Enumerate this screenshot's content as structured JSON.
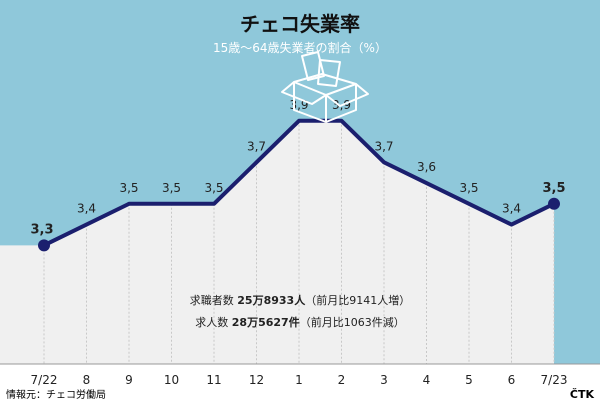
{
  "chart_data": {
    "type": "area",
    "title": "チェコ失業率",
    "subtitle": "15歳〜64歳失業者の割合（%）",
    "categories": [
      "7/22",
      "8",
      "9",
      "10",
      "11",
      "12",
      "1",
      "2",
      "3",
      "4",
      "5",
      "6",
      "7/23"
    ],
    "values": [
      3.3,
      3.4,
      3.5,
      3.5,
      3.5,
      3.7,
      3.9,
      3.9,
      3.7,
      3.6,
      3.5,
      3.4,
      3.5
    ],
    "value_labels": [
      "3,3",
      "3,4",
      "3,5",
      "3,5",
      "3,5",
      "3,7",
      "3,9",
      "3,9",
      "3,7",
      "3,6",
      "3,5",
      "3,4",
      "3,5"
    ],
    "highlighted_points": [
      0,
      12
    ],
    "ylim": [
      2.95,
      4.0
    ],
    "grid": "vertical",
    "colors": {
      "sky": "#8fc8da",
      "line": "#1b1f6e",
      "area": "#f0f0f0",
      "grid": "#c8c8c8",
      "title_text": "#111111",
      "subtitle_text": "#ffffff"
    },
    "annotations": [
      {
        "label": "求職者数",
        "value": "25万8933人",
        "note": "（前月比9141人増）"
      },
      {
        "label": "求人数",
        "value": "28万5627件",
        "note": "（前月比1063件減）"
      }
    ],
    "source": "情報元：チェコ労働局",
    "credit": "ČTK",
    "icon": "open-box-with-papers-icon"
  }
}
